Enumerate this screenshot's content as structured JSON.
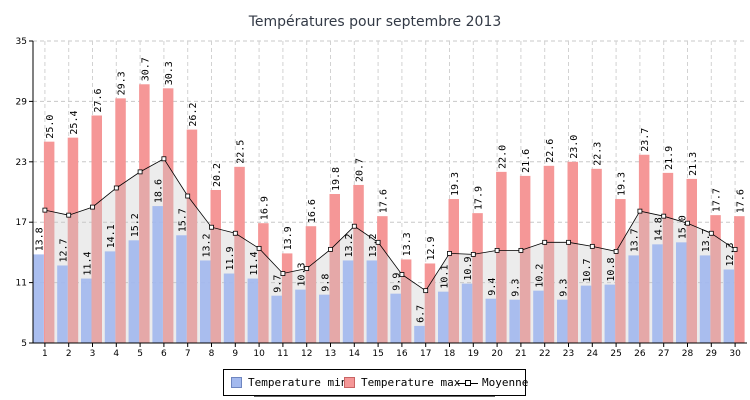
{
  "chart_data": {
    "type": "bar",
    "title": "Températures pour septembre 2013",
    "xlabel": "",
    "ylabel": "",
    "ylim": [
      5,
      35
    ],
    "yticks": [
      5,
      11,
      17,
      23,
      29,
      35
    ],
    "categories": [
      "1",
      "2",
      "3",
      "4",
      "5",
      "6",
      "7",
      "8",
      "9",
      "10",
      "11",
      "12",
      "13",
      "14",
      "15",
      "16",
      "17",
      "18",
      "19",
      "20",
      "21",
      "22",
      "23",
      "24",
      "25",
      "26",
      "27",
      "28",
      "29",
      "30"
    ],
    "grid": true,
    "legend_position": "bottom",
    "series": [
      {
        "name": "Temperature min",
        "kind": "bar",
        "color": "#a3b9ee",
        "values": [
          13.8,
          12.7,
          11.4,
          14.1,
          15.2,
          18.6,
          15.7,
          13.2,
          11.9,
          11.4,
          9.7,
          10.3,
          9.8,
          13.2,
          13.2,
          9.9,
          6.7,
          10.1,
          10.9,
          9.4,
          9.3,
          10.2,
          9.3,
          10.7,
          10.8,
          13.7,
          14.8,
          15.0,
          13.7,
          12.3
        ]
      },
      {
        "name": "Temperature max",
        "kind": "bar",
        "color": "#f59797",
        "values": [
          25.0,
          25.4,
          27.6,
          29.3,
          30.7,
          30.3,
          26.2,
          20.2,
          22.5,
          16.9,
          13.9,
          16.6,
          19.8,
          20.7,
          17.6,
          13.3,
          12.9,
          19.3,
          17.9,
          22.0,
          21.6,
          22.6,
          23.0,
          22.3,
          19.3,
          23.7,
          21.9,
          21.3,
          17.7,
          17.6
        ]
      },
      {
        "name": "Moyenne",
        "kind": "line",
        "color": "#000000",
        "values": [
          18.2,
          17.7,
          18.5,
          20.4,
          22.0,
          23.3,
          19.6,
          16.5,
          15.9,
          14.4,
          11.9,
          12.4,
          14.3,
          16.6,
          15.0,
          11.8,
          10.2,
          13.9,
          13.8,
          14.2,
          14.2,
          15.0,
          15.0,
          14.6,
          14.1,
          18.1,
          17.6,
          16.9,
          15.9,
          14.3
        ]
      }
    ]
  }
}
